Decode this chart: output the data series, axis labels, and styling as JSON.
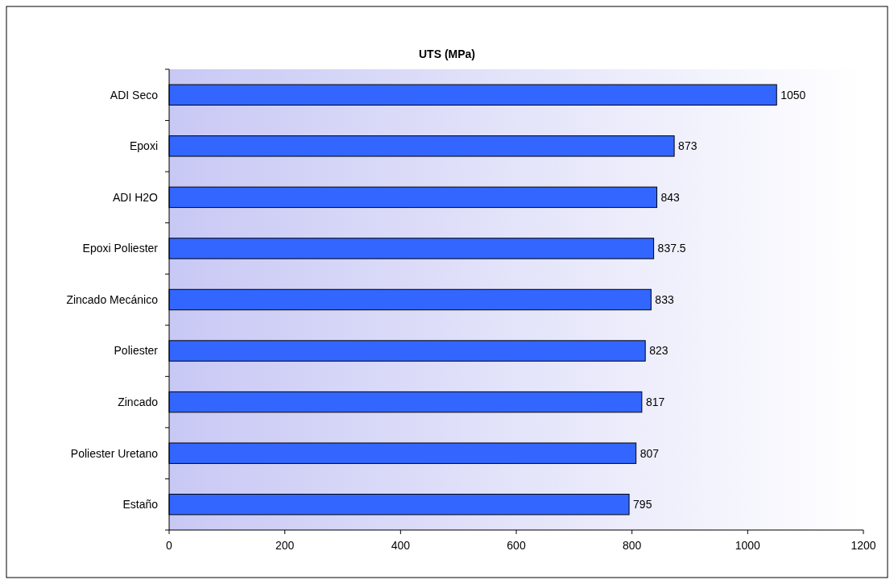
{
  "chart_data": {
    "type": "bar",
    "orientation": "horizontal",
    "title": "UTS (MPa)",
    "categories": [
      "ADI Seco",
      "Epoxi",
      "ADI H2O",
      "Epoxi Poliester",
      "Zincado Mecánico",
      "Poliester",
      "Zincado",
      "Poliester Uretano",
      "Estaño"
    ],
    "values": [
      1050,
      873,
      843,
      837.5,
      833,
      823,
      817,
      807,
      795
    ],
    "color": "#3366ff",
    "xlim": [
      0,
      1200
    ],
    "xticks": [
      0,
      200,
      400,
      600,
      800,
      1000,
      1200
    ],
    "grid": false,
    "data_labels": true
  }
}
